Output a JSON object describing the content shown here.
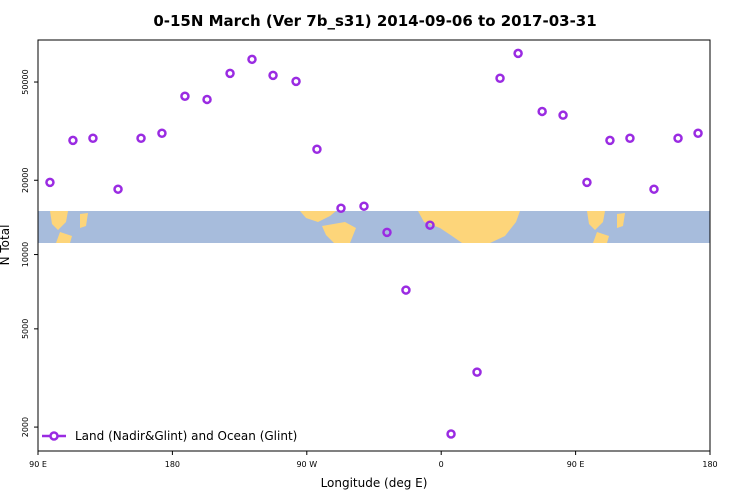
{
  "chart_data": {
    "type": "scatter",
    "title": "0-15N March (Ver 7b_s31)   2014-09-06 to 2017-03-31",
    "xlabel": "Longitude (deg E)",
    "ylabel": "N Total",
    "xlim": [
      90,
      540
    ],
    "xticks": [
      {
        "value": 90,
        "label": "90 E"
      },
      {
        "value": 180,
        "label": "180"
      },
      {
        "value": 270,
        "label": "90 W"
      },
      {
        "value": 360,
        "label": "0"
      },
      {
        "value": 450,
        "label": "90 E"
      },
      {
        "value": 540,
        "label": "180"
      }
    ],
    "ylim": [
      1600,
      74000
    ],
    "ylog": true,
    "yticks": [
      2000,
      5000,
      10000,
      20000,
      50000
    ],
    "legend": "lower left",
    "series": [
      {
        "name": "Land (Nadir&Glint) and Ocean (Glint)",
        "color": "#9a2be2",
        "x": [
          98,
          113.4,
          126.8,
          143.6,
          159,
          173,
          188.4,
          203.2,
          218.6,
          233.3,
          247.4,
          262.8,
          276.8,
          292.9,
          308.3,
          323.7,
          336.4,
          352.5,
          366.6,
          384,
          399.4,
          411.5,
          427.6,
          441.6,
          457.6,
          473,
          486.4,
          502.5,
          518.6,
          532
        ],
        "values": [
          19600,
          29000,
          29600,
          18400,
          29600,
          31000,
          43800,
          42500,
          54200,
          61800,
          53200,
          50300,
          26700,
          15400,
          15700,
          12300,
          7180,
          13150,
          1875,
          3340,
          51800,
          65300,
          38000,
          36700,
          19600,
          29000,
          29600,
          18400,
          29600,
          31000
        ]
      }
    ]
  }
}
